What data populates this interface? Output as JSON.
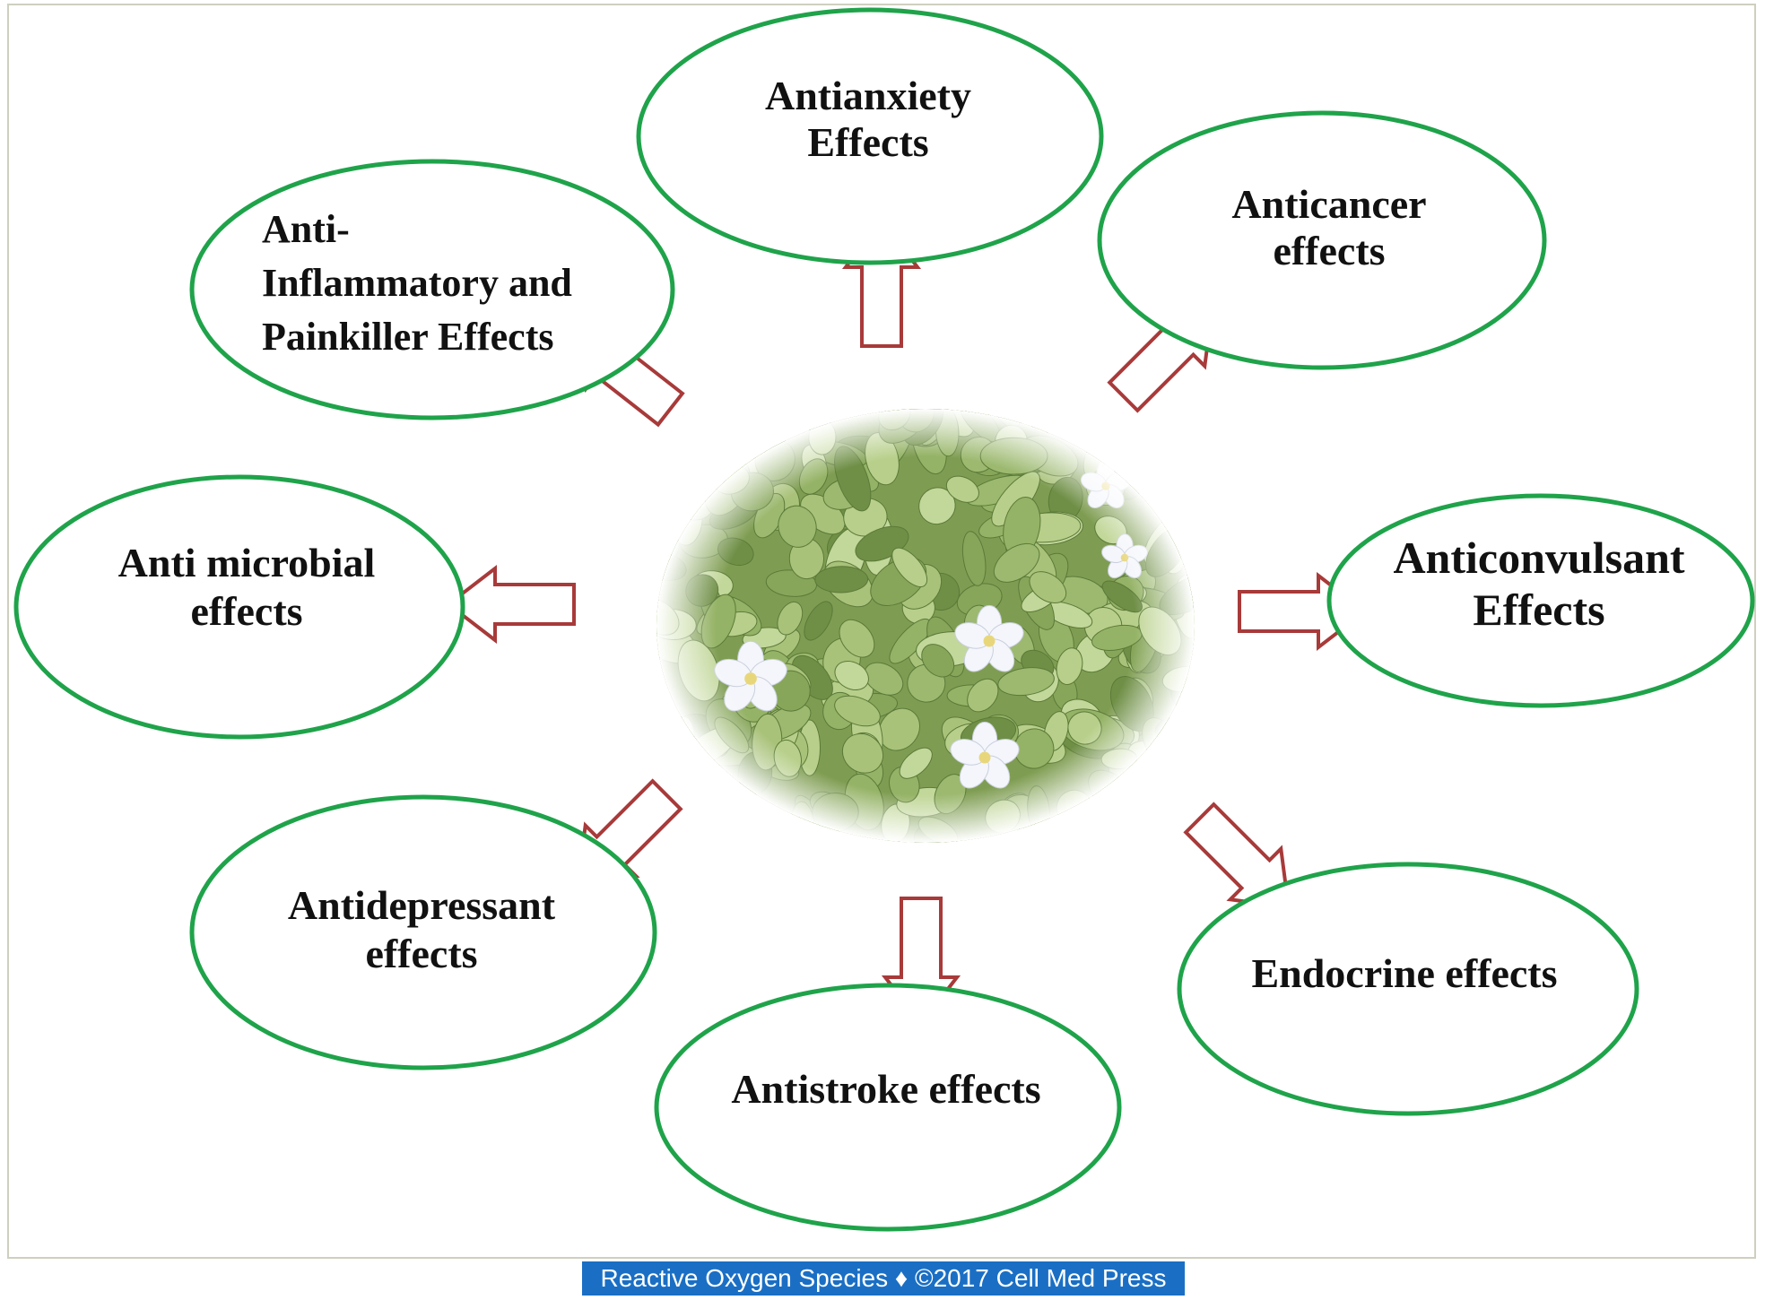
{
  "nodes": [
    {
      "id": "antianxiety",
      "lines": [
        "Antianxiety",
        "Effects"
      ]
    },
    {
      "id": "anticancer",
      "lines": [
        "Anticancer",
        "effects"
      ]
    },
    {
      "id": "anti-inflammatory",
      "lines": [
        "Anti-",
        "Inflammatory and",
        "Painkiller Effects"
      ]
    },
    {
      "id": "antimicrobial",
      "lines": [
        "Anti microbial",
        "effects"
      ]
    },
    {
      "id": "anticonvulsant",
      "lines": [
        "Anticonvulsant",
        "Effects"
      ]
    },
    {
      "id": "antidepressant",
      "lines": [
        "Antidepressant",
        "effects"
      ]
    },
    {
      "id": "endocrine",
      "lines": [
        "Endocrine effects"
      ]
    },
    {
      "id": "antistroke",
      "lines": [
        "Antistroke effects"
      ]
    }
  ],
  "center_image": "bacopa plant with white flowers",
  "colors": {
    "node_border": "#1fa34a",
    "arrow_stroke": "#a83a3a",
    "footer_bg": "#1a6fc4"
  },
  "footer": "Reactive Oxygen Species ♦ ©2017 Cell Med Press"
}
